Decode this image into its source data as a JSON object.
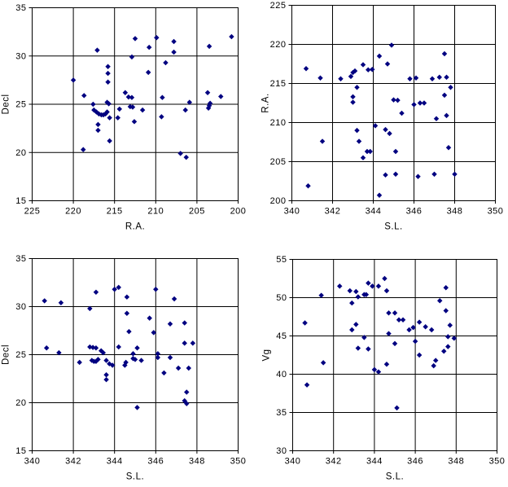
{
  "figure": {
    "background": "#ffffff",
    "marker_color": "#000080",
    "grid_color": "#000000",
    "border_color": "#000000",
    "text_color": "#000000",
    "marker_shape": "diamond"
  },
  "chart_data": [
    {
      "id": "decl-vs-ra",
      "type": "scatter",
      "title": "",
      "xlabel": "R.A.",
      "ylabel": "Decl",
      "x_range": [
        225,
        200
      ],
      "y_range": [
        15,
        35
      ],
      "x_ticks": [
        225,
        220,
        215,
        210,
        205,
        200
      ],
      "y_ticks": [
        15,
        20,
        25,
        30,
        35
      ],
      "x_reversed": true,
      "grid": true,
      "legend": "none",
      "points": [
        [
          200.8,
          32.0
        ],
        [
          202.1,
          25.8
        ],
        [
          203.4,
          25.1
        ],
        [
          203.5,
          24.85
        ],
        [
          203.6,
          24.6
        ],
        [
          203.7,
          26.2
        ],
        [
          203.5,
          31.0
        ],
        [
          205.9,
          25.2
        ],
        [
          206.4,
          24.4
        ],
        [
          206.3,
          19.5
        ],
        [
          207.0,
          19.9
        ],
        [
          207.8,
          31.5
        ],
        [
          207.8,
          30.4
        ],
        [
          208.8,
          29.3
        ],
        [
          209.2,
          25.7
        ],
        [
          209.3,
          23.7
        ],
        [
          209.9,
          31.9
        ],
        [
          210.8,
          30.9
        ],
        [
          210.9,
          28.3
        ],
        [
          211.6,
          24.4
        ],
        [
          212.5,
          31.8
        ],
        [
          212.6,
          23.2
        ],
        [
          212.8,
          24.7
        ],
        [
          212.9,
          29.9
        ],
        [
          212.9,
          25.7
        ],
        [
          213.1,
          24.75
        ],
        [
          213.3,
          25.75
        ],
        [
          213.7,
          26.2
        ],
        [
          214.4,
          24.5
        ],
        [
          214.6,
          23.6
        ],
        [
          215.6,
          23.6
        ],
        [
          215.6,
          21.2
        ],
        [
          215.8,
          28.9
        ],
        [
          215.8,
          28.2
        ],
        [
          215.8,
          27.3
        ],
        [
          215.9,
          25.2
        ],
        [
          215.7,
          25.05
        ],
        [
          215.9,
          24.2
        ],
        [
          216.1,
          24.0
        ],
        [
          216.35,
          23.9
        ],
        [
          216.6,
          23.9
        ],
        [
          216.9,
          24.0
        ],
        [
          217.2,
          24.2
        ],
        [
          217.5,
          24.4
        ],
        [
          217.6,
          25.0
        ],
        [
          217.1,
          30.6
        ],
        [
          217.0,
          22.9
        ],
        [
          217.0,
          22.3
        ],
        [
          218.7,
          25.9
        ],
        [
          218.8,
          20.3
        ],
        [
          220.0,
          27.5
        ]
      ]
    },
    {
      "id": "ra-vs-sl",
      "type": "scatter",
      "title": "",
      "xlabel": "S.L.",
      "ylabel": "R.A.",
      "x_range": [
        340,
        350
      ],
      "y_range": [
        200,
        225
      ],
      "x_ticks": [
        340,
        342,
        344,
        346,
        348,
        350
      ],
      "y_ticks": [
        200,
        205,
        210,
        215,
        220,
        225
      ],
      "x_reversed": false,
      "grid": true,
      "legend": "none",
      "points": [
        [
          340.7,
          216.9
        ],
        [
          340.8,
          201.9
        ],
        [
          341.4,
          215.7
        ],
        [
          341.5,
          207.6
        ],
        [
          342.4,
          215.6
        ],
        [
          342.9,
          215.9
        ],
        [
          343.0,
          216.4
        ],
        [
          343.1,
          216.6
        ],
        [
          343.0,
          213.3
        ],
        [
          343.0,
          212.6
        ],
        [
          343.2,
          214.5
        ],
        [
          343.2,
          209.0
        ],
        [
          343.3,
          207.6
        ],
        [
          343.5,
          217.4
        ],
        [
          343.5,
          205.5
        ],
        [
          343.75,
          216.75
        ],
        [
          343.95,
          216.8
        ],
        [
          343.7,
          206.3
        ],
        [
          343.85,
          206.3
        ],
        [
          344.1,
          209.6
        ],
        [
          344.3,
          218.5
        ],
        [
          344.3,
          200.7
        ],
        [
          344.6,
          209.1
        ],
        [
          344.6,
          203.3
        ],
        [
          344.7,
          217.5
        ],
        [
          344.8,
          208.6
        ],
        [
          344.9,
          219.9
        ],
        [
          345.0,
          212.9
        ],
        [
          345.1,
          203.4
        ],
        [
          345.2,
          212.85
        ],
        [
          345.1,
          206.3
        ],
        [
          345.4,
          211.2
        ],
        [
          345.8,
          215.6
        ],
        [
          346.0,
          212.3
        ],
        [
          346.1,
          215.7
        ],
        [
          346.2,
          203.1
        ],
        [
          346.3,
          212.5
        ],
        [
          346.5,
          212.5
        ],
        [
          346.9,
          215.6
        ],
        [
          347.0,
          203.4
        ],
        [
          347.1,
          210.5
        ],
        [
          347.25,
          215.8
        ],
        [
          347.5,
          218.8
        ],
        [
          347.5,
          213.5
        ],
        [
          347.6,
          210.9
        ],
        [
          347.6,
          215.8
        ],
        [
          347.7,
          206.8
        ],
        [
          347.8,
          214.5
        ],
        [
          348.0,
          203.4
        ]
      ]
    },
    {
      "id": "decl-vs-sl",
      "type": "scatter",
      "title": "",
      "xlabel": "S.L.",
      "ylabel": "Decl",
      "x_range": [
        340,
        350
      ],
      "y_range": [
        15,
        35
      ],
      "x_ticks": [
        340,
        342,
        344,
        346,
        348,
        350
      ],
      "y_ticks": [
        15,
        20,
        25,
        30,
        35
      ],
      "x_reversed": false,
      "grid": true,
      "legend": "none",
      "points": [
        [
          340.6,
          30.6
        ],
        [
          340.7,
          25.7
        ],
        [
          341.3,
          25.2
        ],
        [
          341.4,
          30.4
        ],
        [
          342.3,
          24.2
        ],
        [
          342.8,
          29.8
        ],
        [
          342.8,
          25.8
        ],
        [
          342.95,
          25.75
        ],
        [
          343.1,
          25.7
        ],
        [
          342.9,
          24.4
        ],
        [
          343.0,
          24.3
        ],
        [
          343.1,
          24.3
        ],
        [
          343.2,
          24.5
        ],
        [
          343.1,
          31.5
        ],
        [
          343.35,
          25.4
        ],
        [
          343.45,
          25.2
        ],
        [
          343.6,
          22.9
        ],
        [
          343.6,
          22.4
        ],
        [
          343.6,
          24.4
        ],
        [
          343.75,
          24.05
        ],
        [
          343.9,
          23.9
        ],
        [
          344.0,
          31.8
        ],
        [
          344.2,
          32.0
        ],
        [
          344.2,
          25.8
        ],
        [
          344.5,
          23.9
        ],
        [
          344.55,
          24.2
        ],
        [
          344.6,
          31.0
        ],
        [
          344.6,
          29.3
        ],
        [
          344.7,
          27.4
        ],
        [
          344.9,
          25.1
        ],
        [
          344.9,
          24.6
        ],
        [
          345.0,
          24.5
        ],
        [
          345.1,
          19.5
        ],
        [
          345.1,
          25.7
        ],
        [
          345.3,
          24.4
        ],
        [
          345.7,
          28.8
        ],
        [
          345.9,
          27.3
        ],
        [
          346.0,
          31.8
        ],
        [
          346.1,
          25.1
        ],
        [
          346.1,
          24.7
        ],
        [
          346.4,
          23.1
        ],
        [
          346.7,
          28.2
        ],
        [
          346.7,
          24.7
        ],
        [
          346.9,
          30.8
        ],
        [
          347.1,
          23.6
        ],
        [
          347.4,
          28.3
        ],
        [
          347.4,
          26.2
        ],
        [
          347.5,
          21.1
        ],
        [
          347.4,
          20.2
        ],
        [
          347.5,
          19.9
        ],
        [
          347.6,
          23.6
        ],
        [
          347.8,
          26.2
        ]
      ]
    },
    {
      "id": "vg-vs-sl",
      "type": "scatter",
      "title": "",
      "xlabel": "S.L.",
      "ylabel": "Vg",
      "x_range": [
        340,
        350
      ],
      "y_range": [
        30,
        55
      ],
      "x_ticks": [
        340,
        342,
        344,
        346,
        348,
        350
      ],
      "y_ticks": [
        30,
        35,
        40,
        45,
        50,
        55
      ],
      "x_reversed": false,
      "grid": true,
      "legend": "none",
      "points": [
        [
          340.6,
          46.7
        ],
        [
          340.7,
          38.6
        ],
        [
          341.4,
          50.3
        ],
        [
          341.5,
          41.5
        ],
        [
          342.3,
          51.5
        ],
        [
          342.8,
          50.9
        ],
        [
          342.9,
          49.3
        ],
        [
          342.9,
          45.8
        ],
        [
          343.1,
          50.8
        ],
        [
          343.1,
          46.5
        ],
        [
          343.2,
          50.1
        ],
        [
          343.2,
          43.4
        ],
        [
          343.5,
          50.4
        ],
        [
          343.5,
          44.8
        ],
        [
          343.6,
          50.4
        ],
        [
          343.7,
          51.9
        ],
        [
          343.7,
          43.3
        ],
        [
          343.9,
          51.5
        ],
        [
          344.0,
          40.6
        ],
        [
          344.2,
          40.3
        ],
        [
          344.2,
          51.5
        ],
        [
          344.5,
          52.5
        ],
        [
          344.6,
          50.9
        ],
        [
          344.6,
          41.3
        ],
        [
          344.7,
          45.3
        ],
        [
          344.7,
          48.0
        ],
        [
          345.0,
          48.0
        ],
        [
          345.0,
          44.0
        ],
        [
          345.1,
          35.6
        ],
        [
          345.2,
          47.1
        ],
        [
          345.4,
          47.1
        ],
        [
          345.7,
          45.8
        ],
        [
          345.9,
          46.1
        ],
        [
          346.0,
          44.3
        ],
        [
          346.2,
          46.8
        ],
        [
          346.2,
          42.5
        ],
        [
          346.5,
          46.2
        ],
        [
          346.8,
          45.8
        ],
        [
          346.9,
          41.1
        ],
        [
          347.0,
          41.8
        ],
        [
          347.2,
          49.6
        ],
        [
          347.4,
          43.0
        ],
        [
          347.5,
          51.3
        ],
        [
          347.5,
          48.3
        ],
        [
          347.6,
          44.9
        ],
        [
          347.6,
          43.6
        ],
        [
          347.7,
          46.4
        ],
        [
          347.9,
          44.7
        ]
      ]
    }
  ]
}
